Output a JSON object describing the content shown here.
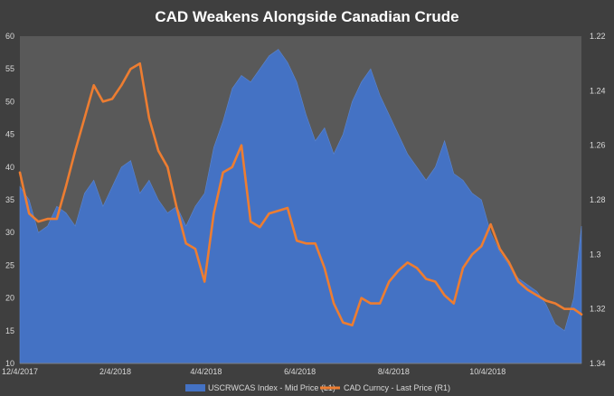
{
  "chart_data": {
    "type": "area",
    "title": "CAD Weakens Alongside Canadian Crude",
    "x_tick_labels": [
      "12/4/2017",
      "2/4/2018",
      "4/4/2018",
      "6/4/2018",
      "8/4/2018",
      "10/4/2018"
    ],
    "x_range": [
      "12/4/2017",
      "12/4/2018"
    ],
    "y_left": {
      "range": [
        10,
        60
      ],
      "ticks": [
        "10",
        "15",
        "20",
        "25",
        "30",
        "35",
        "40",
        "45",
        "50",
        "55",
        "60"
      ]
    },
    "y_right": {
      "range": [
        1.22,
        1.34
      ],
      "inverted": true,
      "ticks": [
        "1.22",
        "1.24",
        "1.26",
        "1.28",
        "1.3",
        "1.32",
        "1.34"
      ]
    },
    "grid": false,
    "legend_position": "bottom",
    "series": [
      {
        "name": "USCRWCAS Index - Mid Price (L1)",
        "type": "area",
        "axis": "left",
        "color": "#4472c4",
        "points": [
          [
            "12/4/2017",
            37
          ],
          [
            "12/10/2017",
            35
          ],
          [
            "12/16/2017",
            30
          ],
          [
            "12/22/2017",
            31
          ],
          [
            "12/28/2017",
            34
          ],
          [
            "1/3/2018",
            33
          ],
          [
            "1/9/2018",
            31
          ],
          [
            "1/15/2018",
            36
          ],
          [
            "1/21/2018",
            38
          ],
          [
            "1/27/2018",
            34
          ],
          [
            "2/2/2018",
            37
          ],
          [
            "2/8/2018",
            40
          ],
          [
            "2/14/2018",
            41
          ],
          [
            "2/20/2018",
            36
          ],
          [
            "2/26/2018",
            38
          ],
          [
            "3/4/2018",
            35
          ],
          [
            "3/10/2018",
            33
          ],
          [
            "3/16/2018",
            34
          ],
          [
            "3/22/2018",
            31
          ],
          [
            "3/28/2018",
            34
          ],
          [
            "4/3/2018",
            36
          ],
          [
            "4/9/2018",
            43
          ],
          [
            "4/15/2018",
            47
          ],
          [
            "4/21/2018",
            52
          ],
          [
            "4/27/2018",
            54
          ],
          [
            "5/3/2018",
            53
          ],
          [
            "5/9/2018",
            55
          ],
          [
            "5/15/2018",
            57
          ],
          [
            "5/21/2018",
            58
          ],
          [
            "5/27/2018",
            56
          ],
          [
            "6/2/2018",
            53
          ],
          [
            "6/8/2018",
            48
          ],
          [
            "6/14/2018",
            44
          ],
          [
            "6/20/2018",
            46
          ],
          [
            "6/26/2018",
            42
          ],
          [
            "7/2/2018",
            45
          ],
          [
            "7/8/2018",
            50
          ],
          [
            "7/14/2018",
            53
          ],
          [
            "7/20/2018",
            55
          ],
          [
            "7/26/2018",
            51
          ],
          [
            "8/1/2018",
            48
          ],
          [
            "8/7/2018",
            45
          ],
          [
            "8/13/2018",
            42
          ],
          [
            "8/19/2018",
            40
          ],
          [
            "8/25/2018",
            38
          ],
          [
            "8/31/2018",
            40
          ],
          [
            "9/6/2018",
            44
          ],
          [
            "9/12/2018",
            39
          ],
          [
            "9/18/2018",
            38
          ],
          [
            "9/24/2018",
            36
          ],
          [
            "9/30/2018",
            35
          ],
          [
            "10/6/2018",
            30
          ],
          [
            "10/12/2018",
            27
          ],
          [
            "10/18/2018",
            25
          ],
          [
            "10/24/2018",
            23
          ],
          [
            "10/30/2018",
            22
          ],
          [
            "11/5/2018",
            21
          ],
          [
            "11/11/2018",
            19
          ],
          [
            "11/17/2018",
            16
          ],
          [
            "11/23/2018",
            15
          ],
          [
            "11/29/2018",
            20
          ],
          [
            "12/4/2018",
            31
          ]
        ]
      },
      {
        "name": "CAD Curncy - Last Price (R1)",
        "type": "line",
        "axis": "right",
        "color": "#ed7d31",
        "points": [
          [
            "12/4/2017",
            1.27
          ],
          [
            "12/10/2017",
            1.285
          ],
          [
            "12/16/2017",
            1.288
          ],
          [
            "12/22/2017",
            1.287
          ],
          [
            "12/28/2017",
            1.287
          ],
          [
            "1/3/2018",
            1.275
          ],
          [
            "1/9/2018",
            1.262
          ],
          [
            "1/15/2018",
            1.25
          ],
          [
            "1/21/2018",
            1.238
          ],
          [
            "1/27/2018",
            1.244
          ],
          [
            "2/2/2018",
            1.243
          ],
          [
            "2/8/2018",
            1.238
          ],
          [
            "2/14/2018",
            1.232
          ],
          [
            "2/20/2018",
            1.23
          ],
          [
            "2/26/2018",
            1.25
          ],
          [
            "3/4/2018",
            1.262
          ],
          [
            "3/10/2018",
            1.268
          ],
          [
            "3/16/2018",
            1.283
          ],
          [
            "3/22/2018",
            1.296
          ],
          [
            "3/28/2018",
            1.298
          ],
          [
            "4/3/2018",
            1.31
          ],
          [
            "4/9/2018",
            1.285
          ],
          [
            "4/15/2018",
            1.27
          ],
          [
            "4/21/2018",
            1.268
          ],
          [
            "4/27/2018",
            1.26
          ],
          [
            "5/3/2018",
            1.288
          ],
          [
            "5/9/2018",
            1.29
          ],
          [
            "5/15/2018",
            1.285
          ],
          [
            "5/21/2018",
            1.284
          ],
          [
            "5/27/2018",
            1.283
          ],
          [
            "6/2/2018",
            1.295
          ],
          [
            "6/8/2018",
            1.296
          ],
          [
            "6/14/2018",
            1.296
          ],
          [
            "6/20/2018",
            1.305
          ],
          [
            "6/26/2018",
            1.318
          ],
          [
            "7/2/2018",
            1.325
          ],
          [
            "7/8/2018",
            1.326
          ],
          [
            "7/14/2018",
            1.316
          ],
          [
            "7/20/2018",
            1.318
          ],
          [
            "7/26/2018",
            1.318
          ],
          [
            "8/1/2018",
            1.31
          ],
          [
            "8/7/2018",
            1.306
          ],
          [
            "8/13/2018",
            1.303
          ],
          [
            "8/19/2018",
            1.305
          ],
          [
            "8/25/2018",
            1.309
          ],
          [
            "8/31/2018",
            1.31
          ],
          [
            "9/6/2018",
            1.315
          ],
          [
            "9/12/2018",
            1.318
          ],
          [
            "9/18/2018",
            1.305
          ],
          [
            "9/24/2018",
            1.3
          ],
          [
            "9/30/2018",
            1.297
          ],
          [
            "10/6/2018",
            1.289
          ],
          [
            "10/12/2018",
            1.298
          ],
          [
            "10/18/2018",
            1.303
          ],
          [
            "10/24/2018",
            1.31
          ],
          [
            "10/30/2018",
            1.313
          ],
          [
            "11/5/2018",
            1.315
          ],
          [
            "11/11/2018",
            1.317
          ],
          [
            "11/17/2018",
            1.318
          ],
          [
            "11/23/2018",
            1.32
          ],
          [
            "11/29/2018",
            1.32
          ],
          [
            "12/4/2018",
            1.322
          ]
        ]
      }
    ]
  }
}
